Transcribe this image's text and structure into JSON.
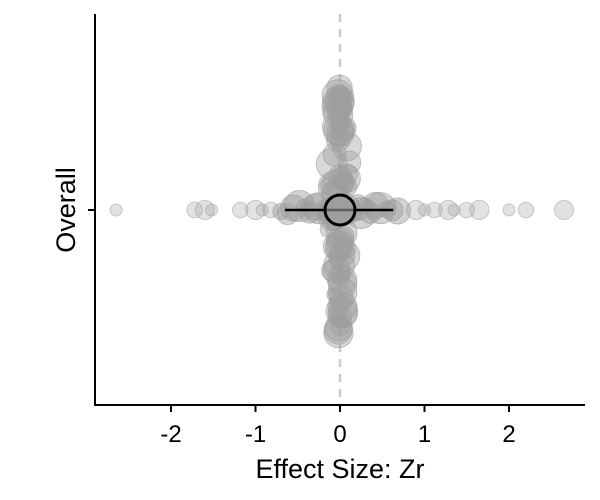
{
  "chart_data": {
    "type": "scatter",
    "title": "",
    "xlabel": "Effect Size: Zr",
    "ylabel": "Overall",
    "xlim": [
      -2.9,
      2.95
    ],
    "x_ticks": [
      {
        "value": -2,
        "label": "-2"
      },
      {
        "value": -1,
        "label": "-1"
      },
      {
        "value": 0,
        "label": "0"
      },
      {
        "value": 1,
        "label": "1"
      },
      {
        "value": 2,
        "label": "2"
      }
    ],
    "y_categories": [
      "Overall"
    ],
    "reference_line": {
      "x": 0,
      "style": "dashed",
      "color": "#cccccc"
    },
    "estimate": {
      "x": 0.0,
      "ci_low": -0.65,
      "ci_high": 0.63
    },
    "points_color": "#9e9e9e",
    "points_outer": [
      -2.65,
      -1.72,
      -1.6,
      -1.52,
      -1.18,
      -1.0,
      -0.92,
      -0.82,
      0.9,
      1.0,
      1.12,
      1.28,
      1.35,
      1.5,
      1.65,
      2.0,
      2.2,
      2.65
    ],
    "points_core": [
      -0.7,
      -0.62,
      -0.55,
      -0.48,
      -0.42,
      -0.36,
      -0.3,
      -0.25,
      -0.2,
      -0.15,
      -0.1,
      -0.06,
      -0.03,
      0.0,
      0.03,
      0.06,
      0.1,
      0.15,
      0.2,
      0.25,
      0.3,
      0.36,
      0.42,
      0.48,
      0.55,
      0.62,
      0.68
    ],
    "grid": false,
    "legend": "none"
  }
}
